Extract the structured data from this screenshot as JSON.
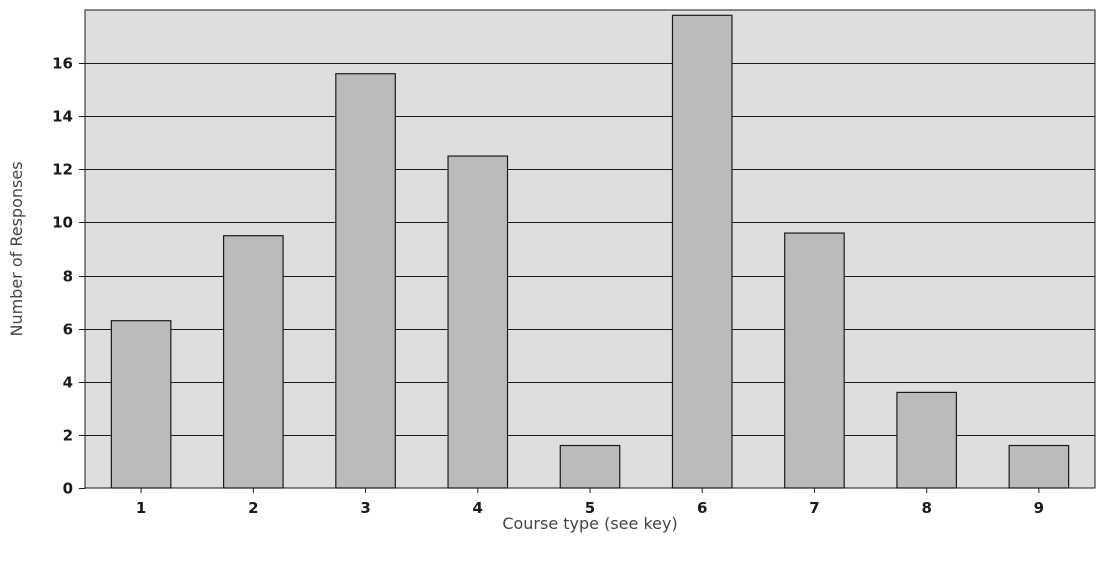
{
  "chart_data": {
    "type": "bar",
    "title": "",
    "xlabel": "Course type (see key)",
    "ylabel": "Number of Responses",
    "categories": [
      "1",
      "2",
      "3",
      "4",
      "5",
      "6",
      "7",
      "8",
      "9"
    ],
    "values": [
      6.3,
      9.5,
      15.6,
      12.5,
      1.6,
      17.8,
      9.6,
      3.6,
      1.6
    ],
    "ylim": [
      0,
      18
    ],
    "yticks": [
      0,
      2,
      4,
      6,
      8,
      10,
      12,
      14,
      16
    ],
    "ytick_labels": [
      "0",
      "2",
      "4",
      "6",
      "8",
      "10",
      "12",
      "14",
      "16"
    ],
    "grid": true,
    "legend": "none",
    "colors": {
      "bar_fill": "#bbbbbd",
      "plot_background": "#dededf",
      "line": "#1a1a1a"
    }
  }
}
